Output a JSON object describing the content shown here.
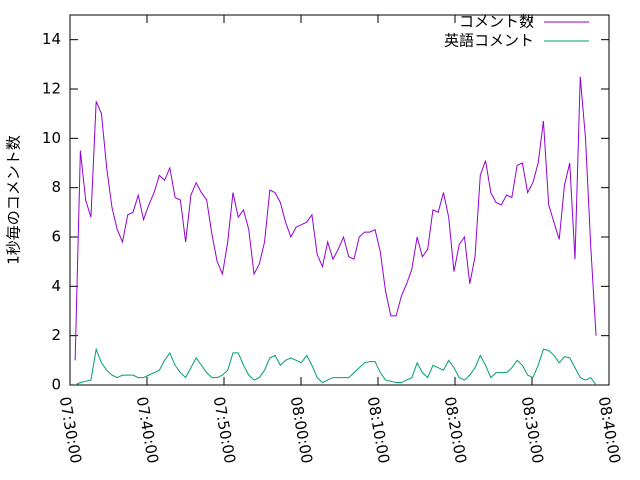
{
  "chart_data": {
    "type": "line",
    "y_label": "1秒毎のコメント数",
    "xlim": [
      "07:30:00",
      "08:40:00"
    ],
    "xticks": [
      "07:30:00",
      "07:40:00",
      "07:50:00",
      "08:00:00",
      "08:10:00",
      "08:20:00",
      "08:30:00",
      "08:40:00"
    ],
    "ylim": [
      0,
      15
    ],
    "yticks": [
      0,
      2,
      4,
      6,
      8,
      10,
      12,
      14
    ],
    "grid": false,
    "legend": "top-right",
    "x": [
      "07:30:40",
      "07:31:21",
      "07:32:02",
      "07:32:43",
      "07:33:24",
      "07:34:05",
      "07:34:46",
      "07:35:27",
      "07:36:08",
      "07:36:49",
      "07:37:30",
      "07:38:11",
      "07:38:52",
      "07:39:33",
      "07:40:14",
      "07:40:55",
      "07:41:36",
      "07:42:17",
      "07:42:58",
      "07:43:39",
      "07:44:20",
      "07:45:01",
      "07:45:42",
      "07:46:23",
      "07:47:04",
      "07:47:45",
      "07:48:26",
      "07:49:07",
      "07:49:48",
      "07:50:29",
      "07:51:10",
      "07:51:51",
      "07:52:32",
      "07:53:13",
      "07:53:54",
      "07:54:35",
      "07:55:16",
      "07:55:57",
      "07:56:38",
      "07:57:19",
      "07:58:00",
      "07:58:41",
      "07:59:22",
      "08:00:03",
      "08:00:44",
      "08:01:25",
      "08:02:06",
      "08:02:47",
      "08:03:28",
      "08:04:09",
      "08:04:50",
      "08:05:31",
      "08:06:12",
      "08:06:53",
      "08:07:34",
      "08:08:15",
      "08:08:56",
      "08:09:37",
      "08:10:18",
      "08:10:59",
      "08:11:40",
      "08:12:21",
      "08:13:02",
      "08:13:43",
      "08:14:24",
      "08:15:05",
      "08:15:46",
      "08:16:27",
      "08:17:08",
      "08:17:49",
      "08:18:30",
      "08:19:11",
      "08:19:52",
      "08:20:33",
      "08:21:14",
      "08:21:55",
      "08:22:36",
      "08:23:17",
      "08:23:58",
      "08:24:39",
      "08:25:20",
      "08:26:01",
      "08:26:42",
      "08:27:23",
      "08:28:04",
      "08:28:45",
      "08:29:26",
      "08:30:07",
      "08:30:48",
      "08:31:29",
      "08:32:10",
      "08:32:51",
      "08:33:32",
      "08:34:13",
      "08:34:54",
      "08:35:35",
      "08:36:16",
      "08:36:57",
      "08:37:38",
      "08:38:19"
    ],
    "series": [
      {
        "name": "コメント数",
        "color": "#9400d3",
        "values": [
          1.0,
          9.5,
          7.5,
          6.8,
          11.5,
          11,
          8.8,
          7.2,
          6.3,
          5.8,
          6.9,
          7.0,
          7.7,
          6.7,
          7.3,
          7.8,
          8.5,
          8.3,
          8.8,
          7.6,
          7.5,
          5.8,
          7.7,
          8.2,
          7.8,
          7.5,
          6.1,
          5.0,
          4.5,
          5.8,
          7.8,
          6.8,
          7.1,
          6.3,
          4.5,
          4.9,
          5.8,
          7.9,
          7.8,
          7.4,
          6.6,
          6.0,
          6.4,
          6.5,
          6.6,
          6.9,
          5.3,
          4.8,
          5.8,
          5.1,
          5.5,
          6.0,
          5.2,
          5.1,
          6.0,
          6.2,
          6.2,
          6.3,
          5.4,
          3.8,
          2.8,
          2.8,
          3.6,
          4.1,
          4.7,
          6.0,
          5.2,
          5.5,
          7.1,
          7.0,
          7.8,
          6.8,
          4.6,
          5.7,
          6.0,
          4.1,
          5.2,
          8.5,
          9.1,
          7.8,
          7.4,
          7.3,
          7.7,
          7.6,
          8.9,
          9.0,
          7.8,
          8.2,
          9.0,
          10.7,
          7.3,
          6.6,
          5.9,
          8.1,
          9.0,
          5.1,
          12.5,
          10.0,
          5.6,
          2.0
        ]
      },
      {
        "name": "英語コメント",
        "color": "#009e73",
        "values": [
          0,
          0.1,
          0.15,
          0.2,
          1.45,
          0.9,
          0.6,
          0.4,
          0.3,
          0.4,
          0.4,
          0.4,
          0.3,
          0.3,
          0.4,
          0.5,
          0.6,
          1.0,
          1.3,
          0.8,
          0.5,
          0.3,
          0.7,
          1.1,
          0.8,
          0.5,
          0.3,
          0.3,
          0.4,
          0.6,
          1.3,
          1.3,
          0.8,
          0.4,
          0.2,
          0.3,
          0.6,
          1.1,
          1.2,
          0.8,
          1.0,
          1.1,
          1.0,
          0.9,
          1.2,
          0.8,
          0.3,
          0.1,
          0.2,
          0.3,
          0.3,
          0.3,
          0.3,
          0.5,
          0.7,
          0.9,
          0.95,
          0.95,
          0.5,
          0.2,
          0.15,
          0.1,
          0.1,
          0.2,
          0.3,
          0.9,
          0.5,
          0.3,
          0.8,
          0.7,
          0.6,
          1.0,
          0.7,
          0.3,
          0.2,
          0.4,
          0.7,
          1.2,
          0.8,
          0.3,
          0.5,
          0.5,
          0.5,
          0.7,
          1.0,
          0.8,
          0.4,
          0.3,
          0.8,
          1.45,
          1.4,
          1.2,
          0.9,
          1.15,
          1.1,
          0.7,
          0.3,
          0.2,
          0.3,
          0.0
        ]
      }
    ]
  }
}
